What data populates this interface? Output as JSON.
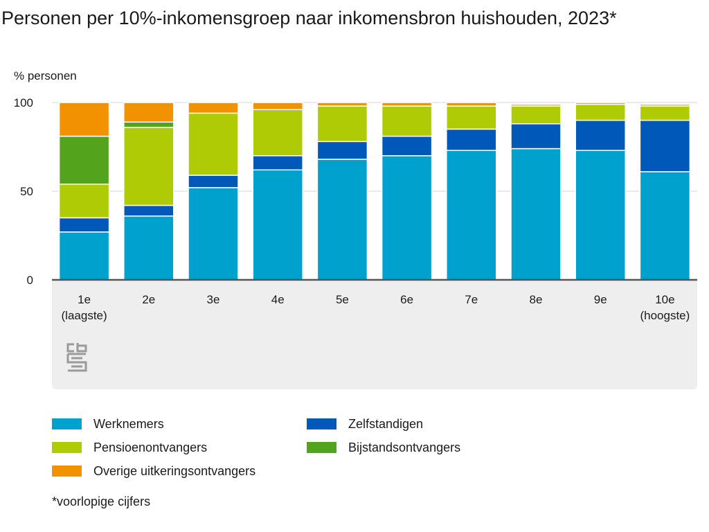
{
  "page": {
    "title": "Personen per 10%-inkomensgroep naar inkomensbron huishouden, 2023*",
    "footnote": "*voorlopige cijfers",
    "logo_icon": "cbs-logo-icon"
  },
  "chart_data": {
    "type": "bar",
    "stacked": true,
    "title": "Personen per 10%-inkomensgroep naar inkomensbron huishouden, 2023*",
    "xlabel": "",
    "ylabel": "% personen",
    "ylim": [
      0,
      100
    ],
    "yticks": [
      0,
      50,
      100
    ],
    "grid": true,
    "legend_position": "bottom",
    "categories": [
      "1e",
      "2e",
      "3e",
      "4e",
      "5e",
      "6e",
      "7e",
      "8e",
      "9e",
      "10e"
    ],
    "category_sublabels": [
      "(laagste)",
      "",
      "",
      "",
      "",
      "",
      "",
      "",
      "",
      "(hoogste)"
    ],
    "series": [
      {
        "name": "Werknemers",
        "color": "#00a1cd",
        "values": [
          27,
          36,
          52,
          62,
          68,
          70,
          73,
          74,
          73,
          61
        ]
      },
      {
        "name": "Zelfstandigen",
        "color": "#0058b8",
        "values": [
          8,
          6,
          7,
          8,
          10,
          11,
          12,
          14,
          17,
          29
        ]
      },
      {
        "name": "Pensioenontvangers",
        "color": "#afcb05",
        "values": [
          19,
          44,
          35,
          26,
          20,
          17,
          13,
          10,
          9,
          8
        ]
      },
      {
        "name": "Bijstandsontvangers",
        "color": "#53a31d",
        "values": [
          27,
          3,
          0,
          0,
          0,
          0,
          0,
          0,
          0,
          0
        ]
      },
      {
        "name": "Overige uitkeringsontvangers",
        "color": "#f39200",
        "values": [
          19,
          11,
          6,
          4,
          2,
          2,
          2,
          1,
          1,
          1
        ]
      }
    ]
  },
  "legend": {
    "items": [
      {
        "label": "Werknemers",
        "color": "#00a1cd"
      },
      {
        "label": "Zelfstandigen",
        "color": "#0058b8"
      },
      {
        "label": "Pensioenontvangers",
        "color": "#afcb05"
      },
      {
        "label": "Bijstandsontvangers",
        "color": "#53a31d"
      },
      {
        "label": "Overige uitkeringsontvangers",
        "color": "#f39200"
      }
    ]
  }
}
